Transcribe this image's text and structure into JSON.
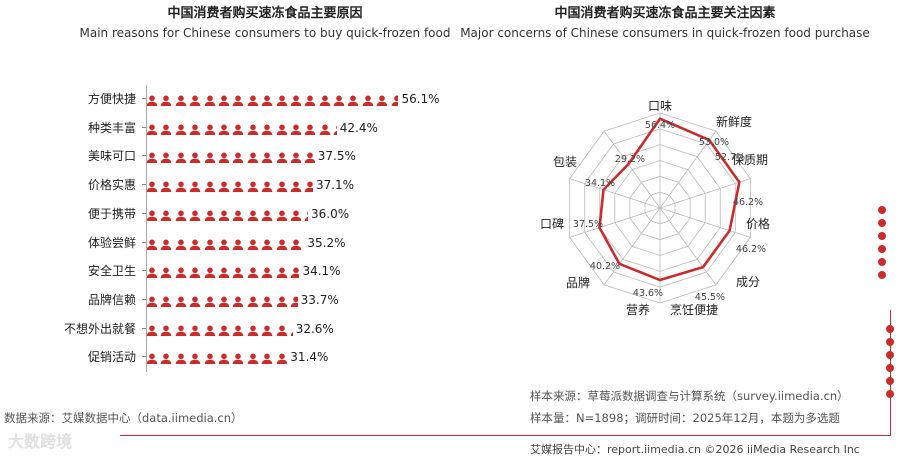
{
  "left": {
    "title_cn": "中国消费者购买速冻食品主要原因",
    "title_en": "Main reasons for Chinese consumers to buy quick-frozen food",
    "source": "数据来源：艾媒数据中心（data.iimedia.cn）"
  },
  "right": {
    "title_cn": "中国消费者购买速冻食品主要关注因素",
    "title_en": "Major concerns of Chinese consumers in quick-frozen food purchase",
    "source1": "样本来源：草莓派数据调查与计算系统（survey.iimedia.cn）",
    "source2": "样本量：N=1898；调研时间：2025年12月，本题为多选题"
  },
  "footer": {
    "text": "艾媒报告中心：report.iimedia.cn      ©2026  iiMedia Research  Inc"
  },
  "watermark": "大数跨境",
  "colors": {
    "accent": "#cc2b2b",
    "grid": "#bbbbbb"
  },
  "icon_name": "person-icon",
  "chart_data": [
    {
      "type": "bar",
      "orientation": "horizontal",
      "title": "中国消费者购买速冻食品主要原因",
      "subtitle": "Main reasons for Chinese consumers to buy quick-frozen food",
      "categories": [
        "方便快捷",
        "种类丰富",
        "美味可口",
        "价格实惠",
        "便于携带",
        "体验尝鲜",
        "安全卫生",
        "品牌信赖",
        "不想外出就餐",
        "促销活动"
      ],
      "values": [
        56.1,
        42.4,
        37.5,
        37.1,
        36.0,
        35.2,
        34.1,
        33.7,
        32.6,
        31.4
      ],
      "value_labels": [
        "56.1%",
        "42.4%",
        "37.5%",
        "37.1%",
        "36.0%",
        "35.2%",
        "34.1%",
        "33.7%",
        "32.6%",
        "31.4%"
      ],
      "unit": "%"
    },
    {
      "type": "radar",
      "title": "中国消费者购买速冻食品主要关注因素",
      "subtitle": "Major concerns of Chinese consumers in quick-frozen food purchase",
      "categories": [
        "口味",
        "新鲜度",
        "保质期",
        "价格",
        "成分",
        "烹饪便捷",
        "营养",
        "品牌",
        "口碑",
        "包装"
      ],
      "values": [
        56.4,
        53.0,
        52.7,
        46.2,
        46.2,
        45.5,
        43.6,
        40.2,
        37.5,
        34.1
      ],
      "value_labels": [
        "56.4%",
        "53.0%",
        "52.7%",
        "46.2%",
        "46.2%",
        "45.5%",
        "43.6%",
        "40.2%",
        "37.5%",
        "34.1%"
      ],
      "extra_label": "29.2%",
      "unit": "%"
    }
  ]
}
